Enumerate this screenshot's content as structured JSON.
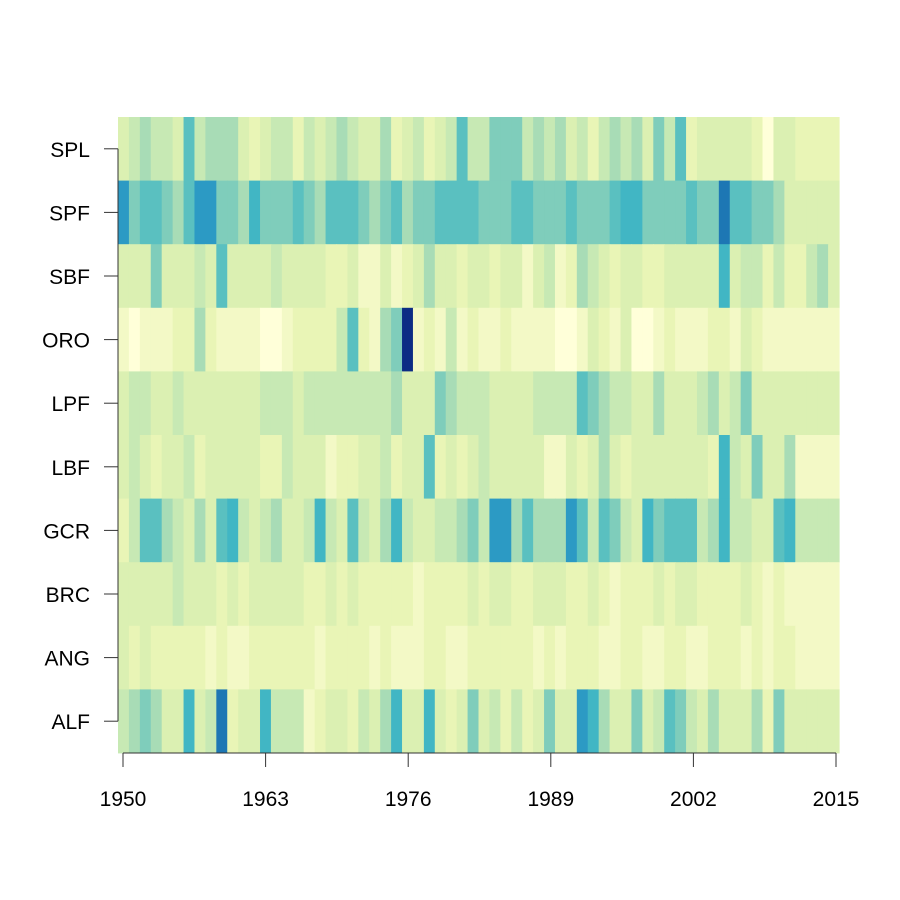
{
  "chart_data": {
    "type": "heatmap",
    "title": "",
    "xlabel": "",
    "ylabel": "",
    "x_start": 1950,
    "x_end": 2015,
    "xticks": [
      "1950",
      "1963",
      "1976",
      "1989",
      "2002",
      "2015"
    ],
    "rows": [
      "SPL",
      "SPF",
      "SBF",
      "ORO",
      "LPF",
      "LBF",
      "GCR",
      "BRC",
      "ANG",
      "ALF"
    ],
    "palette": [
      "#ffffd9",
      "#f3f9c6",
      "#e9f5b6",
      "#dbf0b2",
      "#c7e9b4",
      "#a8dcb6",
      "#7fcdbb",
      "#5ac0c0",
      "#41b6c4",
      "#2c9ac4",
      "#1d77b4",
      "#0c2c84"
    ],
    "level_scale": "0 = lightest (#ffffd9) to 11 = darkest (#0c2c84)",
    "values": {
      "SPL": [
        3,
        4,
        5,
        4,
        4,
        3,
        7,
        4,
        5,
        5,
        5,
        3,
        2,
        3,
        4,
        4,
        2,
        4,
        3,
        4,
        5,
        4,
        3,
        3,
        5,
        2,
        3,
        4,
        2,
        3,
        4,
        7,
        4,
        4,
        6,
        6,
        6,
        4,
        5,
        4,
        5,
        3,
        4,
        2,
        4,
        5,
        4,
        5,
        3,
        6,
        4,
        7,
        2,
        3,
        3,
        3,
        3,
        3,
        2,
        0,
        3,
        3,
        2,
        2,
        2,
        2
      ],
      "SPF": [
        9,
        6,
        7,
        7,
        6,
        5,
        7,
        9,
        9,
        6,
        6,
        5,
        8,
        6,
        6,
        6,
        7,
        6,
        5,
        7,
        7,
        7,
        6,
        5,
        6,
        7,
        5,
        6,
        6,
        7,
        7,
        7,
        7,
        6,
        6,
        6,
        7,
        7,
        6,
        6,
        6,
        7,
        6,
        6,
        6,
        7,
        8,
        8,
        6,
        6,
        6,
        6,
        7,
        6,
        6,
        10,
        7,
        7,
        6,
        6,
        5,
        3,
        3,
        3,
        3,
        3
      ],
      "SBF": [
        3,
        3,
        3,
        6,
        3,
        3,
        3,
        4,
        3,
        7,
        3,
        3,
        3,
        3,
        4,
        3,
        3,
        3,
        3,
        2,
        2,
        3,
        1,
        1,
        3,
        1,
        2,
        3,
        5,
        3,
        3,
        2,
        3,
        3,
        2,
        3,
        3,
        1,
        3,
        4,
        1,
        2,
        5,
        4,
        3,
        2,
        3,
        3,
        2,
        2,
        3,
        3,
        3,
        3,
        3,
        8,
        3,
        4,
        4,
        2,
        4,
        2,
        2,
        4,
        5,
        3
      ],
      "ORO": [
        1,
        0,
        1,
        1,
        1,
        2,
        2,
        5,
        2,
        1,
        1,
        1,
        1,
        0,
        0,
        1,
        2,
        2,
        2,
        2,
        4,
        7,
        2,
        1,
        5,
        6,
        11,
        1,
        2,
        1,
        4,
        1,
        2,
        1,
        1,
        2,
        1,
        1,
        1,
        1,
        0,
        0,
        1,
        3,
        2,
        1,
        3,
        0,
        0,
        1,
        2,
        1,
        1,
        1,
        2,
        2,
        1,
        3,
        2,
        1,
        1,
        1,
        1,
        1,
        1,
        1
      ],
      "LPF": [
        3,
        4,
        4,
        3,
        3,
        4,
        3,
        3,
        3,
        3,
        3,
        3,
        3,
        4,
        4,
        4,
        3,
        4,
        4,
        4,
        4,
        4,
        4,
        4,
        4,
        5,
        3,
        3,
        3,
        6,
        5,
        4,
        4,
        4,
        3,
        3,
        3,
        3,
        4,
        4,
        4,
        4,
        7,
        6,
        5,
        4,
        4,
        3,
        3,
        5,
        3,
        3,
        3,
        4,
        5,
        3,
        4,
        6,
        3,
        3,
        3,
        3,
        3,
        3,
        3,
        3
      ],
      "LBF": [
        3,
        4,
        3,
        2,
        3,
        3,
        4,
        2,
        3,
        3,
        3,
        3,
        3,
        2,
        2,
        4,
        3,
        3,
        3,
        1,
        2,
        2,
        3,
        3,
        4,
        2,
        3,
        3,
        7,
        2,
        3,
        2,
        3,
        4,
        3,
        3,
        3,
        3,
        3,
        1,
        1,
        3,
        2,
        3,
        5,
        3,
        2,
        3,
        3,
        3,
        3,
        3,
        3,
        3,
        2,
        8,
        4,
        3,
        6,
        3,
        3,
        5,
        1,
        1,
        1,
        1
      ],
      "GCR": [
        2,
        4,
        7,
        7,
        5,
        4,
        3,
        5,
        3,
        7,
        8,
        4,
        3,
        4,
        5,
        3,
        3,
        4,
        8,
        4,
        3,
        7,
        4,
        3,
        5,
        8,
        4,
        3,
        3,
        4,
        4,
        5,
        6,
        4,
        9,
        9,
        5,
        7,
        5,
        5,
        5,
        9,
        7,
        4,
        7,
        6,
        4,
        3,
        8,
        6,
        7,
        7,
        7,
        4,
        5,
        8,
        4,
        4,
        3,
        3,
        7,
        8,
        4,
        4,
        4,
        4
      ],
      "BRC": [
        3,
        3,
        3,
        3,
        3,
        4,
        3,
        3,
        3,
        2,
        3,
        2,
        3,
        3,
        3,
        3,
        3,
        2,
        2,
        3,
        2,
        3,
        2,
        2,
        2,
        2,
        2,
        1,
        2,
        2,
        2,
        2,
        3,
        2,
        3,
        3,
        2,
        2,
        3,
        3,
        3,
        2,
        2,
        3,
        2,
        1,
        2,
        2,
        2,
        3,
        2,
        3,
        3,
        2,
        2,
        2,
        2,
        3,
        2,
        1,
        2,
        1,
        1,
        1,
        1,
        1
      ],
      "ANG": [
        3,
        2,
        3,
        2,
        2,
        2,
        2,
        2,
        1,
        2,
        1,
        1,
        2,
        2,
        2,
        2,
        2,
        2,
        1,
        2,
        2,
        2,
        2,
        1,
        2,
        1,
        1,
        1,
        2,
        2,
        1,
        1,
        2,
        2,
        2,
        2,
        2,
        2,
        1,
        2,
        1,
        2,
        2,
        2,
        1,
        1,
        2,
        2,
        1,
        1,
        2,
        2,
        1,
        1,
        2,
        2,
        2,
        1,
        2,
        1,
        2,
        2,
        1,
        1,
        1,
        1
      ],
      "ALF": [
        4,
        5,
        6,
        5,
        3,
        3,
        8,
        3,
        4,
        10,
        2,
        3,
        3,
        8,
        4,
        4,
        4,
        1,
        2,
        3,
        3,
        2,
        4,
        3,
        5,
        8,
        3,
        3,
        8,
        3,
        2,
        3,
        6,
        3,
        4,
        2,
        4,
        2,
        3,
        6,
        3,
        3,
        9,
        8,
        5,
        3,
        3,
        6,
        3,
        4,
        7,
        6,
        4,
        3,
        5,
        3,
        3,
        3,
        5,
        2,
        6,
        3,
        3,
        3,
        3,
        3
      ]
    }
  }
}
